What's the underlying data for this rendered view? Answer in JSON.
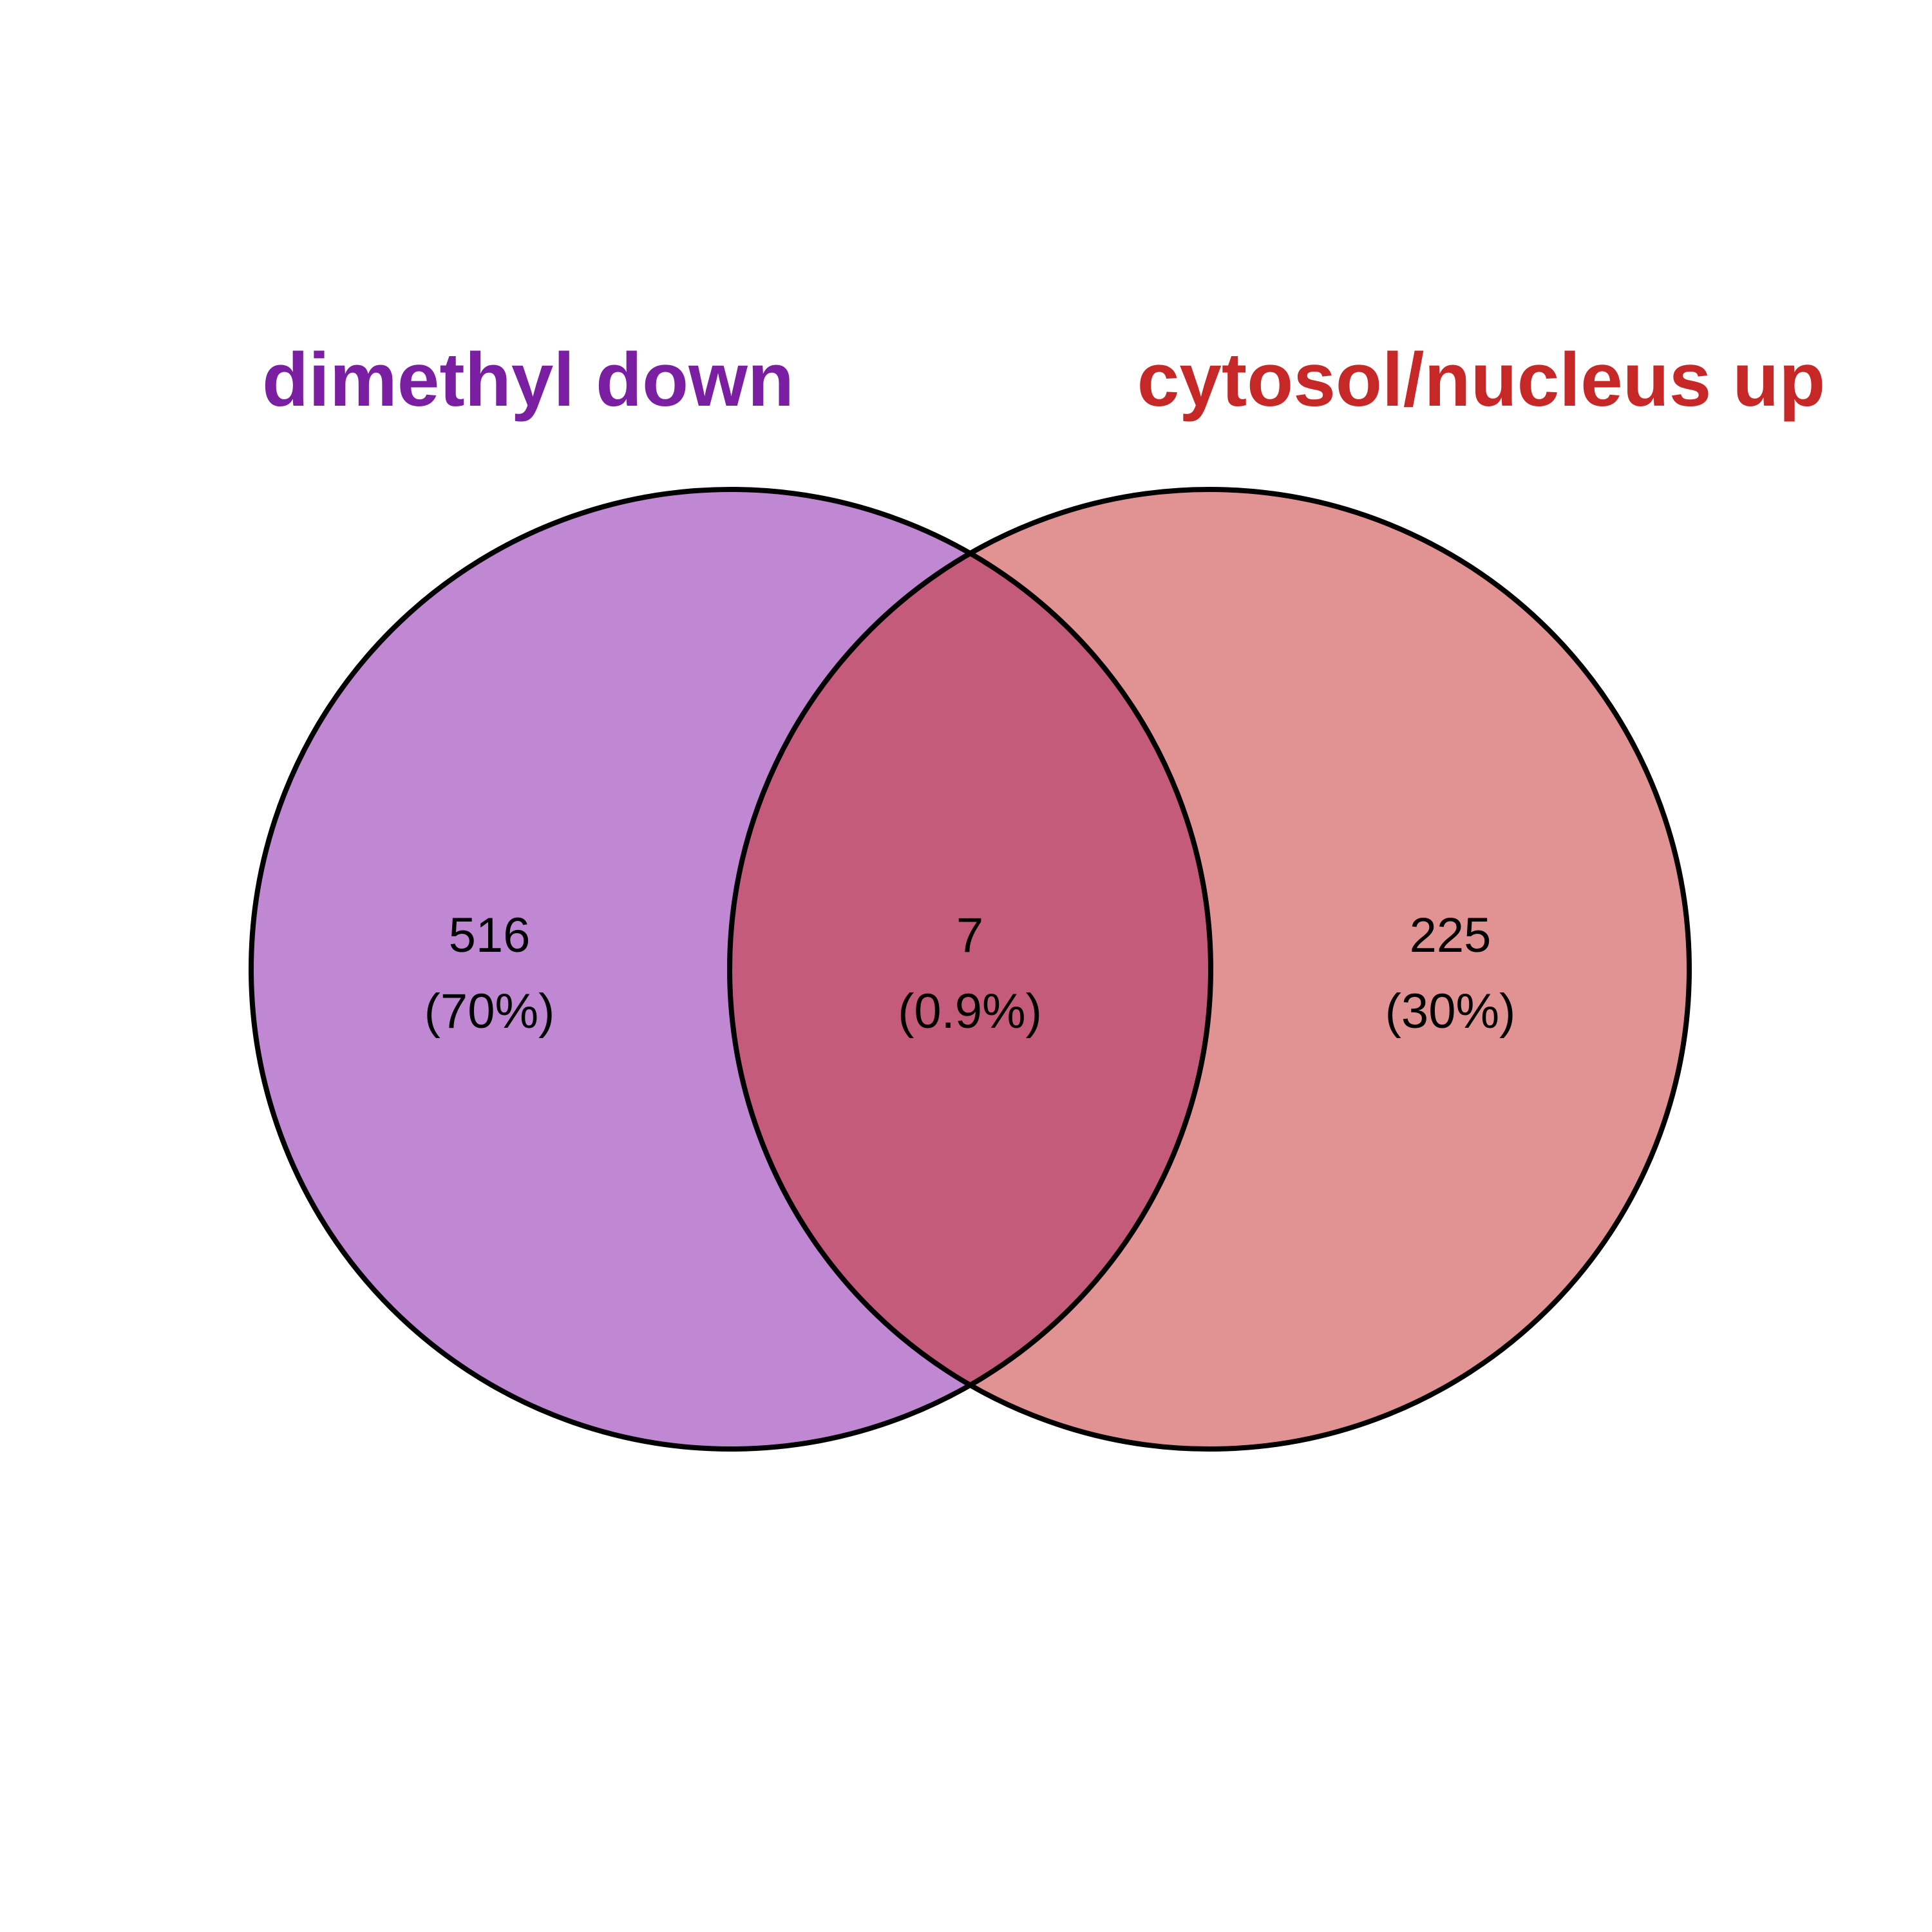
{
  "venn": {
    "sets": [
      {
        "label": "dimethyl down",
        "color": "#7b1fa2",
        "fill": "#c088d3"
      },
      {
        "label": "cytosol/nucleus up",
        "color": "#c62828",
        "fill": "#e19393"
      }
    ],
    "intersection_fill": "#c45b7c",
    "outline_color": "#000000",
    "regions": {
      "left_only": {
        "count": "516",
        "percent": "(70%)"
      },
      "both": {
        "count": "7",
        "percent": "(0.9%)"
      },
      "right_only": {
        "count": "225",
        "percent": "(30%)"
      }
    }
  }
}
